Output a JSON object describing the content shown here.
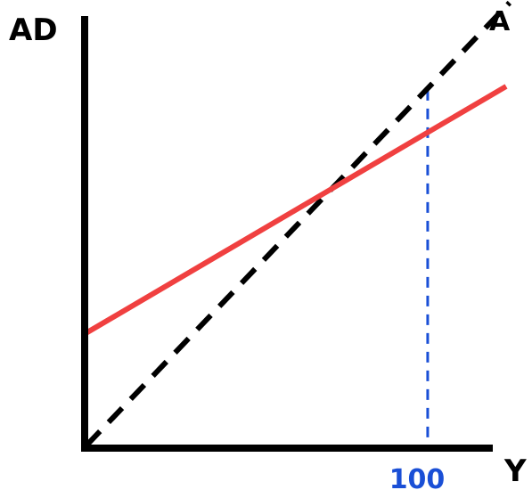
{
  "chart_data": {
    "type": "line",
    "title": "",
    "xlabel": "Y",
    "ylabel": "AD",
    "xlim": [
      0,
      123
    ],
    "ylim": [
      0,
      127
    ],
    "grid": false,
    "x_ticks": [
      {
        "value": 100,
        "label": "100"
      }
    ],
    "series": [
      {
        "name": "",
        "kind": "aggregate-demand",
        "color": "#f04040",
        "style": "solid",
        "x": [
          0,
          123
        ],
        "y": [
          32,
          103
        ]
      },
      {
        "name": "A",
        "kind": "45-degree-line",
        "color": "#000000",
        "style": "dashed",
        "x": [
          0,
          124
        ],
        "y": [
          0,
          127
        ]
      }
    ],
    "annotations": [
      {
        "kind": "vertical-reference",
        "x": 100,
        "from_y": 0,
        "to_y": 102,
        "color": "#1a4fd6",
        "style": "dashed"
      }
    ],
    "tick_color": "#1a4fd6"
  }
}
